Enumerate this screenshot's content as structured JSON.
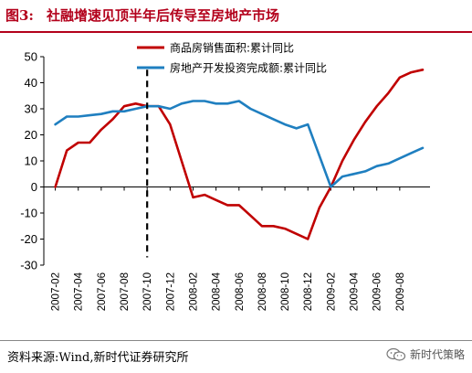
{
  "header": {
    "figure_number": "图3:",
    "title": "社融增速见顶半年后传导至房地产市场"
  },
  "footer": {
    "source": "资料来源:Wind,新时代证券研究所",
    "watermark": "新时代策略"
  },
  "icons": {
    "watermark_icon": "wechat-icon"
  },
  "chart_data": {
    "type": "line",
    "ylim": [
      -30,
      50
    ],
    "yticks": [
      -30,
      -20,
      -10,
      0,
      10,
      20,
      30,
      40,
      50
    ],
    "grid": false,
    "legend_position": "top-center",
    "categories": [
      "2007-01",
      "2007-02",
      "2007-03",
      "2007-04",
      "2007-05",
      "2007-06",
      "2007-07",
      "2007-08",
      "2007-09",
      "2007-10",
      "2007-11",
      "2007-12",
      "2008-01",
      "2008-02",
      "2008-03",
      "2008-04",
      "2008-05",
      "2008-06",
      "2008-07",
      "2008-08",
      "2008-09",
      "2008-10",
      "2008-11",
      "2008-12",
      "2009-01",
      "2009-02",
      "2009-03",
      "2009-04",
      "2009-05",
      "2009-06",
      "2009-07",
      "2009-08",
      "2009-09",
      "2009-10"
    ],
    "xtick_labels": [
      "2007-02",
      "2007-04",
      "2007-06",
      "2007-08",
      "2007-10",
      "2007-12",
      "2008-02",
      "2008-04",
      "2008-06",
      "2008-08",
      "2008-10",
      "2008-12",
      "2009-02",
      "2009-04",
      "2009-06",
      "2009-08"
    ],
    "series": [
      {
        "name": "商品房销售面积:累计同比",
        "color": "#c00000",
        "values": [
          null,
          0,
          14,
          17,
          17,
          22,
          26,
          31,
          32,
          31,
          31,
          24,
          10,
          -4,
          -3,
          -5,
          -7,
          -7,
          -11,
          -15,
          -15,
          -16,
          -18,
          -20,
          -8,
          0,
          10,
          18,
          25,
          31,
          36,
          42,
          44,
          45
        ]
      },
      {
        "name": "房地产开发投资完成额:累计同比",
        "color": "#1f7fc0",
        "values": [
          null,
          24,
          27,
          27,
          27.5,
          28,
          29,
          29,
          30,
          31,
          31,
          30,
          32,
          33,
          33,
          32,
          32,
          33,
          30,
          28,
          26,
          24,
          22.5,
          24,
          12,
          0,
          4,
          5,
          6,
          8,
          9,
          11,
          13,
          15
        ]
      }
    ],
    "annotations": [
      {
        "type": "vertical-dashed-line",
        "x": "2007-10",
        "color": "#000000"
      }
    ]
  }
}
